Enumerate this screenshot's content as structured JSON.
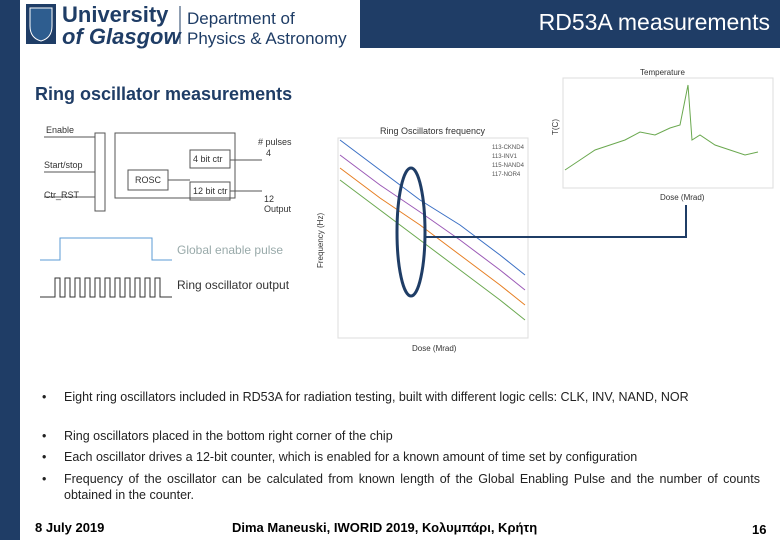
{
  "header": {
    "university": [
      "University",
      "of Glasgow"
    ],
    "department": [
      "Department of",
      "Physics & Astronomy"
    ],
    "title": "RD53A measurements"
  },
  "heading": "Ring oscillator measurements",
  "diagram": {
    "enable": "Enable",
    "start_stop": "Start/stop",
    "ctr_rst": "Ctr_RST",
    "rosc": "ROSC",
    "ctr4": "4 bit ctr",
    "ctr12": "12 bit ctr",
    "pulses": "# pulses",
    "n4": "4",
    "n12": "12",
    "output": "Output"
  },
  "waveforms": {
    "enable_label": "Global enable pulse",
    "output_label": "Ring oscillator output"
  },
  "frequency_chart": {
    "title": "Ring Oscillators frequency",
    "x_label": "Dose (Mrad)",
    "y_label": "Frequency (Hz)",
    "legend": [
      "113-CKND4",
      "113-INV1",
      "115-NAND4",
      "117-NOR4"
    ]
  },
  "temperature_chart": {
    "title": "Temperature",
    "x_label": "Dose (Mrad)",
    "y_label": "T(C)"
  },
  "bullets": [
    "Eight ring oscillators included in RD53A for radiation testing, built with different logic cells: CLK, INV, NAND, NOR",
    "Ring oscillators placed in the bottom right corner of the chip",
    "Each oscillator drives a 12-bit counter, which is enabled for a known amount of time set by configuration",
    "Frequency of the oscillator can be calculated from known length of the Global Enabling Pulse and the number of counts obtained in the counter."
  ],
  "footer": {
    "date": "8 July 2019",
    "author": "Dima Maneuski, IWORID 2019, Κολυμπάρι, Κρήτη",
    "page": "16"
  }
}
